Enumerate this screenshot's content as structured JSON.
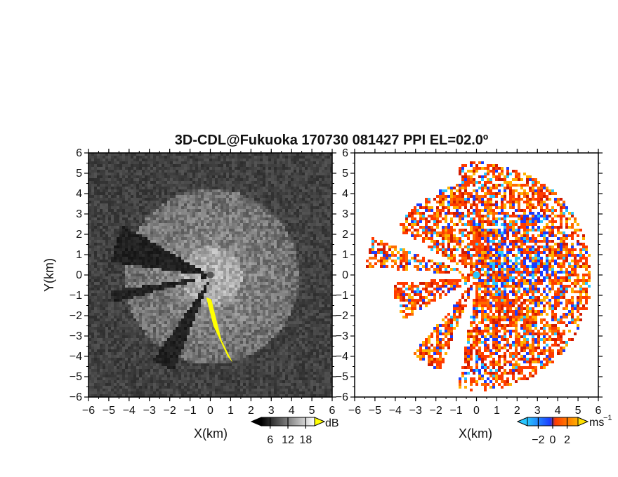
{
  "title": "3D-CDL@Fukuoka 170730 081427 PPI EL=02.0º",
  "chart_data": [
    {
      "type": "heatmap",
      "name": "reflectivity-ppi",
      "xlabel": "X(km)",
      "ylabel": "Y(km)",
      "xlim": [
        -6,
        6
      ],
      "ylim": [
        -6,
        6
      ],
      "xticks": [
        "-6",
        "-5",
        "-4",
        "-3",
        "-2",
        "-1",
        "0",
        "1",
        "2",
        "3",
        "4",
        "5",
        "6"
      ],
      "yticks": [
        "-6",
        "-5",
        "-4",
        "-3",
        "-2",
        "-1",
        "0",
        "1",
        "2",
        "3",
        "4",
        "5",
        "6"
      ],
      "colormap": "grayscale",
      "colorbar": {
        "unit": "dB",
        "ticks": [
          "6",
          "12",
          "18"
        ],
        "range": [
          3,
          21
        ],
        "colors": [
          "#000000",
          "#ffffff"
        ],
        "overflow_color": "#ffff00"
      },
      "highlight_color": "#ffff00"
    },
    {
      "type": "heatmap",
      "name": "doppler-velocity-ppi",
      "xlabel": "X(km)",
      "xlim": [
        -6,
        6
      ],
      "ylim": [
        -6,
        6
      ],
      "xticks": [
        "-6",
        "-5",
        "-4",
        "-3",
        "-2",
        "-1",
        "0",
        "1",
        "2",
        "3",
        "4",
        "5",
        "6"
      ],
      "yticks": [
        "-6",
        "-5",
        "-4",
        "-3",
        "-2",
        "-1",
        "0",
        "1",
        "2",
        "3",
        "4",
        "5",
        "6"
      ],
      "colormap": "diverging",
      "colorbar": {
        "unit": "ms",
        "unit_exponent": "−1",
        "ticks": [
          "−2",
          "0",
          "2"
        ],
        "range": [
          -3.5,
          3.5
        ],
        "colors": [
          "#29c6ff",
          "#1a3cff",
          "#ff3b00",
          "#ffb000"
        ],
        "overflow_low": "#29c6ff",
        "overflow_high": "#ffe000"
      }
    }
  ]
}
